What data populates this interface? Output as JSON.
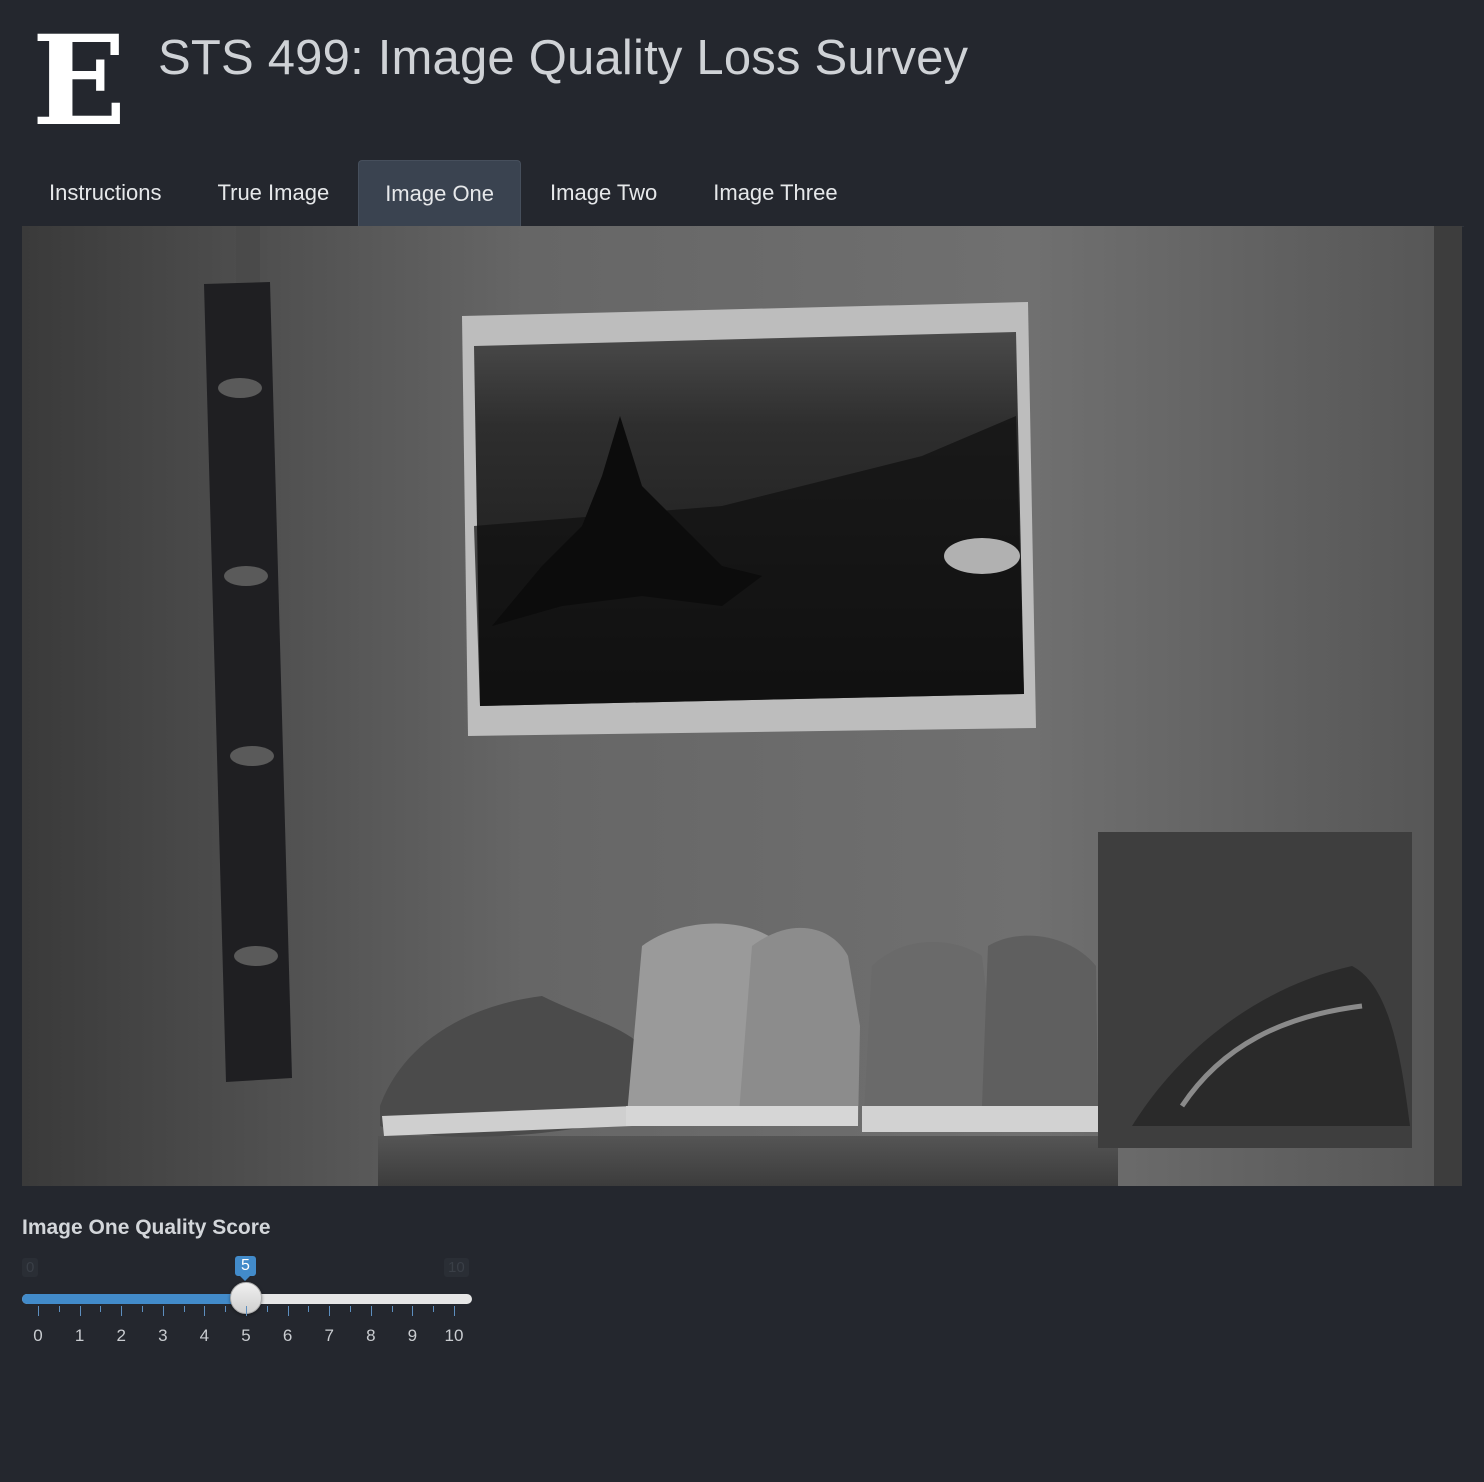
{
  "header": {
    "logo_letter": "E",
    "title": "STS 499: Image Quality Loss Survey"
  },
  "tabs": [
    {
      "label": "Instructions",
      "active": false
    },
    {
      "label": "True Image",
      "active": false
    },
    {
      "label": "Image One",
      "active": true
    },
    {
      "label": "Image Two",
      "active": false
    },
    {
      "label": "Image Three",
      "active": false
    }
  ],
  "slider": {
    "label": "Image One Quality Score",
    "min": 0,
    "max": 10,
    "value": 5,
    "min_label": "0",
    "max_label": "10",
    "value_label": "5",
    "tick_labels": [
      "0",
      "1",
      "2",
      "3",
      "4",
      "5",
      "6",
      "7",
      "8",
      "9",
      "10"
    ],
    "accent_color": "#428bca"
  },
  "colors": {
    "background": "#24272e",
    "active_tab": "#3a4350"
  }
}
